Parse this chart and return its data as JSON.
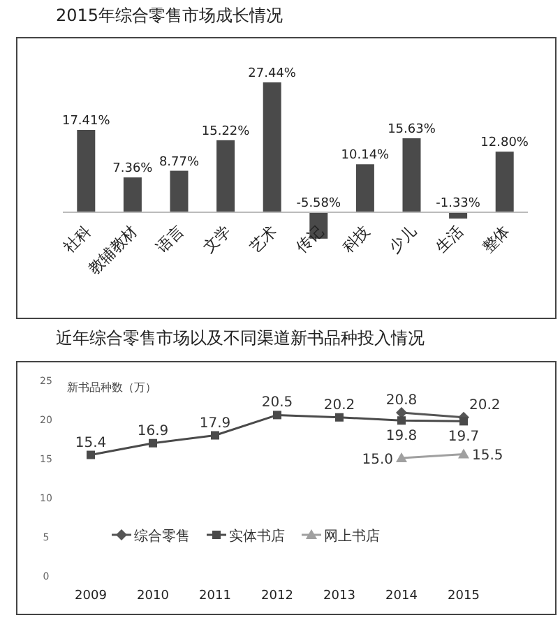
{
  "chart_data": [
    {
      "type": "bar",
      "title": "2015年综合零售市场成长情况",
      "categories": [
        "社科",
        "教辅教材",
        "语言",
        "文学",
        "艺术",
        "传记",
        "科技",
        "少儿",
        "生活",
        "整体"
      ],
      "values": [
        17.41,
        7.36,
        8.77,
        15.22,
        27.44,
        -5.58,
        10.14,
        15.63,
        -1.33,
        12.8
      ],
      "value_labels": [
        "17.41%",
        "7.36%",
        "8.77%",
        "15.22%",
        "27.44%",
        "-5.58%",
        "10.14%",
        "15.63%",
        "-1.33%",
        "12.80%"
      ],
      "color": "#4a4a4a"
    },
    {
      "type": "line",
      "title": "近年综合零售市场以及不同渠道新书品种投入情况",
      "ylabel": "新书品种数（万）",
      "categories": [
        "2009",
        "2010",
        "2011",
        "2012",
        "2013",
        "2014",
        "2015"
      ],
      "ylim": [
        0,
        25
      ],
      "yticks": [
        0,
        5,
        10,
        15,
        20,
        25
      ],
      "legend": "bottom",
      "series": [
        {
          "name": "综合零售",
          "color": "#555555",
          "marker": "diamond",
          "values": [
            null,
            null,
            null,
            null,
            null,
            20.8,
            20.2
          ],
          "value_labels": [
            null,
            null,
            null,
            null,
            null,
            "20.8",
            "20.2"
          ]
        },
        {
          "name": "实体书店",
          "color": "#4a4a4a",
          "marker": "square",
          "values": [
            15.4,
            16.9,
            17.9,
            20.5,
            20.2,
            19.8,
            19.7
          ],
          "value_labels": [
            "15.4",
            "16.9",
            "17.9",
            "20.5",
            "20.2",
            "19.8",
            "19.7"
          ]
        },
        {
          "name": "网上书店",
          "color": "#a0a0a0",
          "marker": "triangle",
          "values": [
            null,
            null,
            null,
            null,
            null,
            15.0,
            15.5
          ],
          "value_labels": [
            null,
            null,
            null,
            null,
            null,
            "15.0",
            "15.5"
          ]
        }
      ]
    }
  ]
}
